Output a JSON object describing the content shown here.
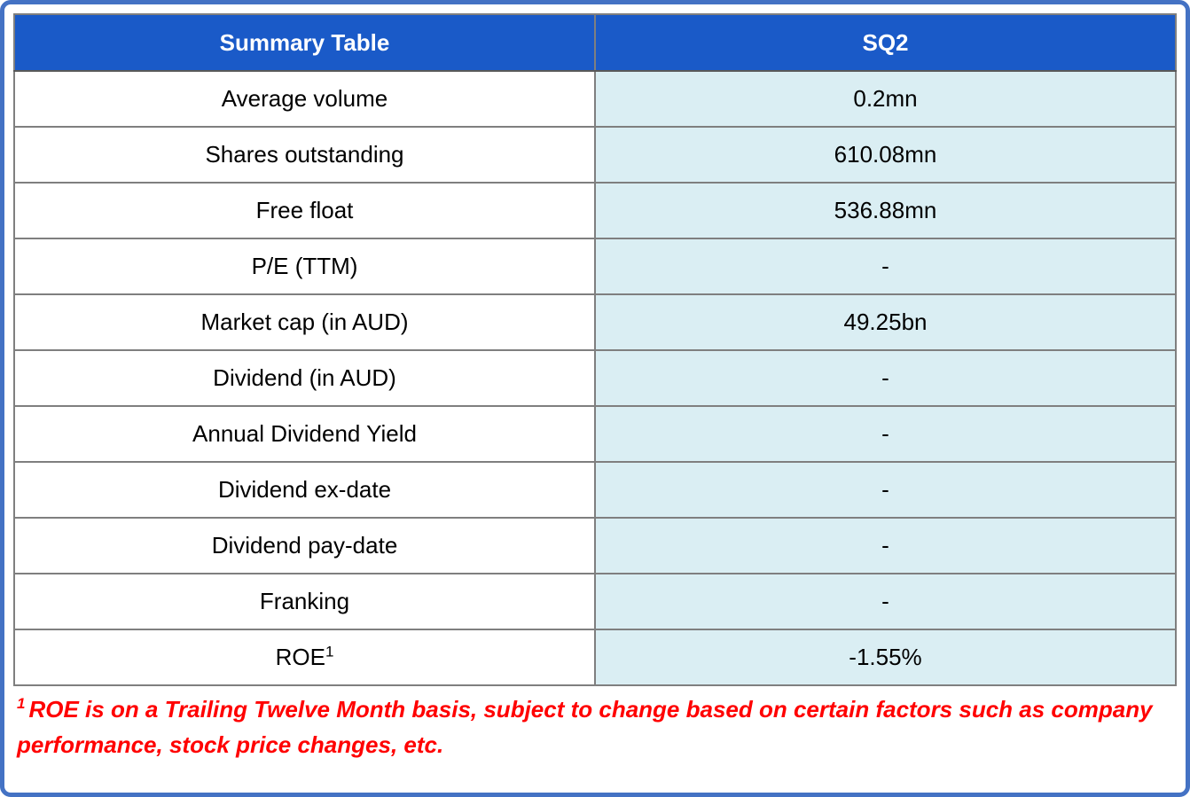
{
  "frame": {
    "border_color": "#4472C4"
  },
  "table": {
    "header_bg": "#1A5AC8",
    "value_bg": "#DAEEF3",
    "header": {
      "col1": "Summary Table",
      "col2": "SQ2"
    },
    "rows": [
      {
        "label": "Average volume",
        "value": "0.2mn"
      },
      {
        "label": "Shares outstanding",
        "value": "610.08mn"
      },
      {
        "label": "Free float",
        "value": "536.88mn"
      },
      {
        "label": "P/E (TTM)",
        "value": "-"
      },
      {
        "label": "Market cap (in AUD)",
        "value": "49.25bn"
      },
      {
        "label": "Dividend (in AUD)",
        "value": "-"
      },
      {
        "label": "Annual Dividend Yield",
        "value": "-"
      },
      {
        "label": "Dividend ex-date",
        "value": "-"
      },
      {
        "label": "Dividend pay-date",
        "value": "-"
      },
      {
        "label": "Franking",
        "value": "-"
      },
      {
        "label": "ROE",
        "label_sup": "1",
        "value": "-1.55%"
      }
    ]
  },
  "footnote": {
    "sup": "1",
    "text": "ROE is on a Trailing Twelve Month basis, subject to change based on certain factors such as company performance, stock price changes, etc.",
    "color": "#FF0000"
  }
}
